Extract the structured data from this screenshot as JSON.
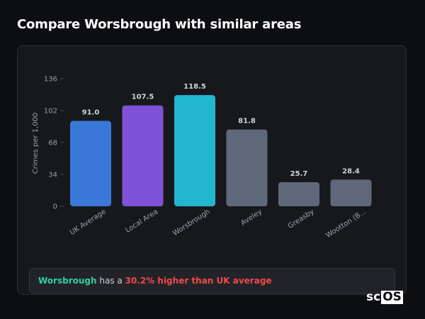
{
  "page": {
    "title": "Compare Worsbrough with similar areas"
  },
  "summary": {
    "area": "Worsbrough",
    "connector": "has a",
    "comparison": "30.2% higher than UK average"
  },
  "brand": {
    "part1": "sc",
    "part2": "OS"
  },
  "colors": {
    "uk": "#3a78d8",
    "local": "#7d52d6",
    "target": "#22b6cf",
    "other": "#5f6879",
    "axis": "#9aa0aa",
    "value_label": "#cfd2d8"
  },
  "chart_data": {
    "type": "bar",
    "title": "",
    "xlabel": "",
    "ylabel": "Crimes per 1,000",
    "ylim": [
      0,
      136
    ],
    "yticks": [
      0,
      34,
      68,
      102,
      136
    ],
    "grid": false,
    "categories": [
      "UK Average",
      "Local Area",
      "Worsbrough",
      "Aveley",
      "Greasby",
      "Wootton (B..."
    ],
    "values": [
      91.0,
      107.5,
      118.5,
      81.8,
      25.7,
      28.4
    ],
    "value_labels": [
      "91.0",
      "107.5",
      "118.5",
      "81.8",
      "25.7",
      "28.4"
    ],
    "bar_colors": [
      "#3a78d8",
      "#7d52d6",
      "#22b6cf",
      "#5f6879",
      "#5f6879",
      "#5f6879"
    ]
  }
}
